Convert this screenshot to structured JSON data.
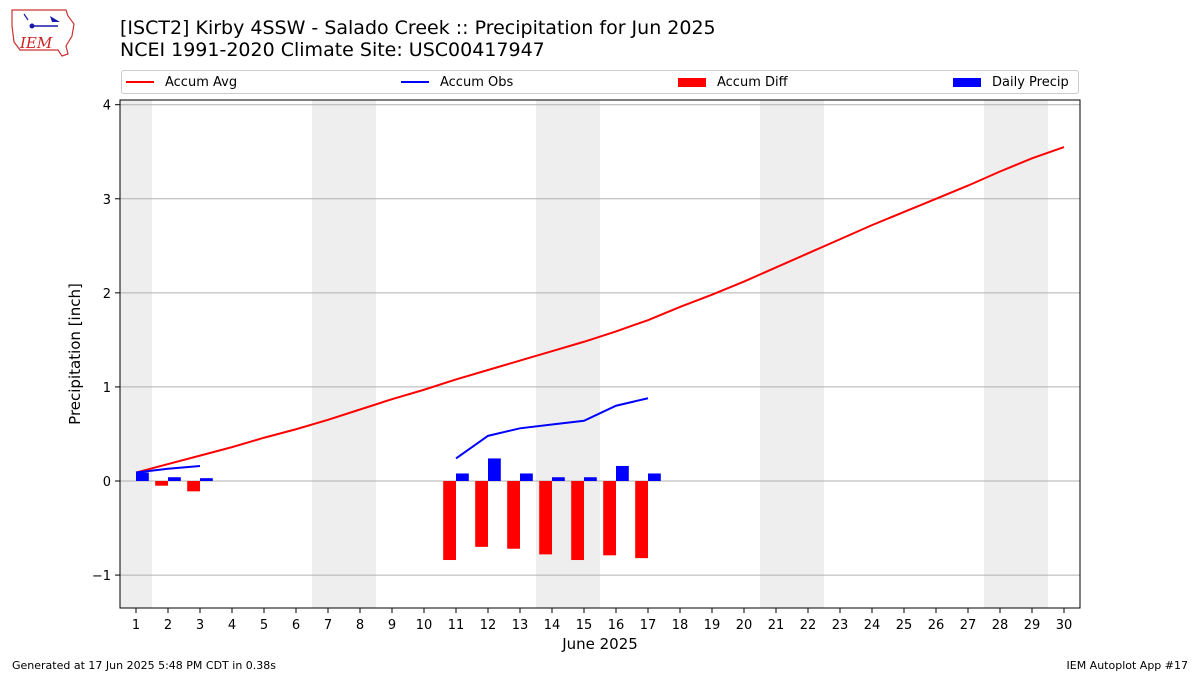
{
  "logo": {
    "text": "IEM",
    "accent": "#cc2222",
    "icon": "iowa-state-weather-icon"
  },
  "title_line1": "[ISCT2] Kirby 4SSW - Salado Creek :: Precipitation for Jun 2025",
  "title_line2": "NCEI 1991-2020 Climate Site: USC00417947",
  "legend": [
    {
      "label": "Accum Avg",
      "kind": "line",
      "color": "#ff0000"
    },
    {
      "label": "Accum Obs",
      "kind": "line",
      "color": "#0000ff"
    },
    {
      "label": "Accum Diff",
      "kind": "bar",
      "color": "#ff0000"
    },
    {
      "label": "Daily Precip",
      "kind": "bar",
      "color": "#0000ff"
    }
  ],
  "footer_left": "Generated at 17 Jun 2025 5:48 PM CDT in 0.38s",
  "footer_right": "IEM Autoplot App #17",
  "chart_data": {
    "type": "bar",
    "xlabel": "June 2025",
    "ylabel": "Precipitation [inch]",
    "xlim": [
      0.5,
      30.5
    ],
    "ylim": [
      -1.35,
      4.05
    ],
    "yticks": [
      -1,
      0,
      1,
      2,
      3,
      4
    ],
    "ytick_labels": [
      "−1",
      "0",
      "1",
      "2",
      "3",
      "4"
    ],
    "grid": "horizontal",
    "legend_position": "top",
    "weekend_days": [
      1,
      7,
      8,
      14,
      15,
      21,
      22,
      28,
      29
    ],
    "weekend_shade_color": "#eeeeee",
    "days": [
      1,
      2,
      3,
      4,
      5,
      6,
      7,
      8,
      9,
      10,
      11,
      12,
      13,
      14,
      15,
      16,
      17,
      18,
      19,
      20,
      21,
      22,
      23,
      24,
      25,
      26,
      27,
      28,
      29,
      30
    ],
    "series": [
      {
        "name": "Accum Avg",
        "kind": "line",
        "color": "#ff0000",
        "x": [
          1,
          2,
          3,
          4,
          5,
          6,
          7,
          8,
          9,
          10,
          11,
          12,
          13,
          14,
          15,
          16,
          17,
          18,
          19,
          20,
          21,
          22,
          23,
          24,
          25,
          26,
          27,
          28,
          29,
          30
        ],
        "values": [
          0.09,
          0.18,
          0.27,
          0.36,
          0.46,
          0.55,
          0.65,
          0.76,
          0.87,
          0.97,
          1.08,
          1.18,
          1.28,
          1.38,
          1.48,
          1.59,
          1.71,
          1.85,
          1.98,
          2.12,
          2.27,
          2.42,
          2.57,
          2.72,
          2.86,
          3.0,
          3.14,
          3.29,
          3.43,
          3.55
        ]
      },
      {
        "name": "Accum Obs",
        "kind": "line",
        "color": "#0000ff",
        "segments": [
          {
            "x": [
              1,
              2,
              3
            ],
            "values": [
              0.09,
              0.13,
              0.16
            ]
          },
          {
            "x": [
              11,
              12,
              13,
              14,
              15,
              16,
              17
            ],
            "values": [
              0.24,
              0.48,
              0.56,
              0.6,
              0.64,
              0.8,
              0.88
            ]
          }
        ]
      },
      {
        "name": "Accum Diff",
        "kind": "bar",
        "color": "#ff0000",
        "x": [
          2,
          3,
          11,
          12,
          13,
          14,
          15,
          16,
          17
        ],
        "values": [
          -0.05,
          -0.11,
          -0.84,
          -0.7,
          -0.72,
          -0.78,
          -0.84,
          -0.79,
          -0.82
        ]
      },
      {
        "name": "Daily Precip",
        "kind": "bar",
        "color": "#0000ff",
        "x": [
          1,
          2,
          3,
          11,
          12,
          13,
          14,
          15,
          16,
          17
        ],
        "values": [
          0.09,
          0.04,
          0.03,
          0.08,
          0.24,
          0.08,
          0.04,
          0.04,
          0.16,
          0.08
        ]
      }
    ]
  }
}
